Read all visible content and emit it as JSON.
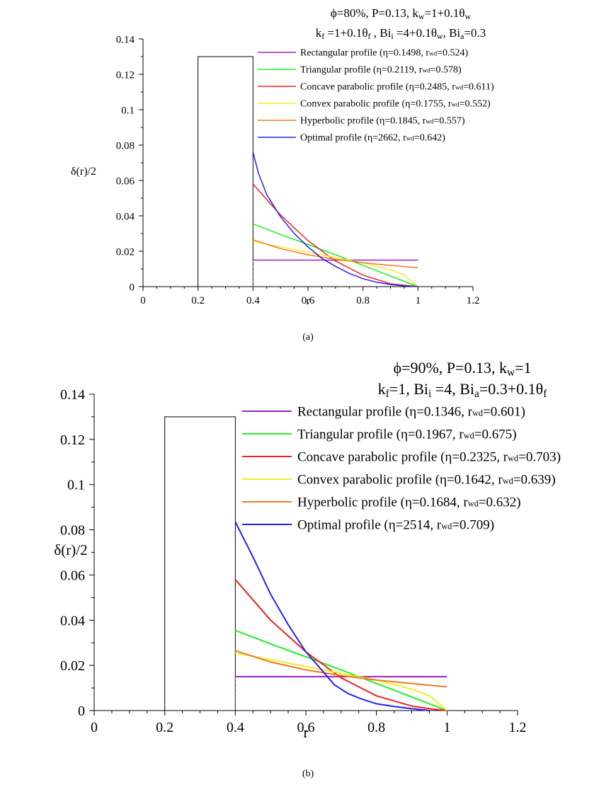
{
  "chart_data": [
    {
      "type": "line",
      "panel_label": "(a)",
      "subtitle_lines": [
        {
          "parts": [
            [
              "t",
              "ϕ=80%, P=0.13, k"
            ],
            [
              "s",
              "w"
            ],
            [
              "t",
              "=1+0.1θ"
            ],
            [
              "s",
              "w"
            ]
          ]
        },
        {
          "parts": [
            [
              "t",
              "k"
            ],
            [
              "s",
              "f"
            ],
            [
              "t",
              " =1+0.1θ"
            ],
            [
              "s",
              "f"
            ],
            [
              "t",
              " , Bi"
            ],
            [
              "s",
              "i"
            ],
            [
              "t",
              " =4+0.1θ"
            ],
            [
              "s",
              "w"
            ],
            [
              "t",
              ", Bi"
            ],
            [
              "s",
              "a"
            ],
            [
              "t",
              "=0.3"
            ]
          ]
        }
      ],
      "xlabel": "r",
      "ylabel": "δ(r)/2",
      "xlim": [
        0,
        1.2
      ],
      "ylim": [
        0,
        0.14
      ],
      "xticks": [
        0,
        0.2,
        0.4,
        0.6,
        0.8,
        1,
        1.2
      ],
      "xtick_labels": [
        "0",
        "0.2",
        "0.4",
        "0.6",
        "0.8",
        "1",
        "1.2"
      ],
      "yticks": [
        0,
        0.02,
        0.04,
        0.06,
        0.08,
        0.1,
        0.12,
        0.14
      ],
      "ytick_labels": [
        "0",
        "0.02",
        "0.04",
        "0.06",
        "0.08",
        "0.1",
        "0.12",
        "0.14"
      ],
      "heat_pipe_block": {
        "x": [
          0.2,
          0.4
        ],
        "height": 0.13
      },
      "series": [
        {
          "name": "Rectangular profile",
          "eta": "η=0.1498",
          "rwd": "=0.524",
          "color": "#a020c0",
          "x": [
            0.4,
            1.0
          ],
          "y": [
            0.015,
            0.015
          ]
        },
        {
          "name": "Triangular profile",
          "eta": "η=0.2119",
          "rwd": "=0.578",
          "color": "#22ee22",
          "x": [
            0.4,
            0.5,
            0.6,
            0.7,
            0.8,
            0.9,
            1.0
          ],
          "y": [
            0.0355,
            0.0295,
            0.0238,
            0.018,
            0.012,
            0.006,
            0.0
          ]
        },
        {
          "name": "Concave parabolic profile",
          "eta": "η=0.2485",
          "rwd": "=0.611",
          "color": "#ee2222",
          "x": [
            0.4,
            0.5,
            0.6,
            0.7,
            0.8,
            0.9,
            1.0
          ],
          "y": [
            0.058,
            0.0405,
            0.026,
            0.0145,
            0.0065,
            0.0016,
            0.0
          ]
        },
        {
          "name": "Convex parabolic profile",
          "eta": "η=0.1755",
          "rwd": "=0.552",
          "color": "#eeee22",
          "x": [
            0.4,
            0.5,
            0.6,
            0.7,
            0.8,
            0.9,
            0.95,
            1.0
          ],
          "y": [
            0.0255,
            0.0225,
            0.0195,
            0.0165,
            0.0135,
            0.0095,
            0.0065,
            0.0
          ]
        },
        {
          "name": "Hyperbolic profile",
          "eta": "η=0.1845",
          "rwd": "=0.557",
          "color": "#f07a22",
          "x": [
            0.4,
            0.5,
            0.6,
            0.7,
            0.8,
            0.9,
            1.0
          ],
          "y": [
            0.0265,
            0.0215,
            0.018,
            0.0155,
            0.0135,
            0.012,
            0.0107
          ]
        },
        {
          "name": "Optimal profile",
          "eta": "η=2662",
          "rwd": "=0.642",
          "color": "#2222ee",
          "x": [
            0.4,
            0.42,
            0.45,
            0.5,
            0.55,
            0.6,
            0.65,
            0.7,
            0.75,
            0.8,
            0.85,
            0.9,
            0.95,
            1.0
          ],
          "y": [
            0.076,
            0.064,
            0.052,
            0.0395,
            0.03,
            0.0225,
            0.016,
            0.0115,
            0.0075,
            0.0045,
            0.0025,
            0.0012,
            0.0004,
            0.0
          ]
        }
      ]
    },
    {
      "type": "line",
      "panel_label": "(b)",
      "subtitle_lines": [
        {
          "parts": [
            [
              "t",
              "ϕ=90%, P=0.13, k"
            ],
            [
              "s",
              "w"
            ],
            [
              "t",
              "=1"
            ]
          ]
        },
        {
          "parts": [
            [
              "t",
              "k"
            ],
            [
              "s",
              "f"
            ],
            [
              "t",
              "=1, Bi"
            ],
            [
              "s",
              "i"
            ],
            [
              "t",
              " =4, Bi"
            ],
            [
              "s",
              "a"
            ],
            [
              "t",
              "=0.3+0.1θ"
            ],
            [
              "s",
              "f"
            ]
          ]
        }
      ],
      "xlabel": "r",
      "ylabel": "δ(r)/2",
      "xlim": [
        0,
        1.2
      ],
      "ylim": [
        0,
        0.14
      ],
      "xticks": [
        0,
        0.2,
        0.4,
        0.6,
        0.8,
        1,
        1.2
      ],
      "xtick_labels": [
        "0",
        "0.2",
        "0.4",
        "0.6",
        "0.8",
        "1",
        "1.2"
      ],
      "yticks": [
        0,
        0.02,
        0.04,
        0.06,
        0.08,
        0.1,
        0.12,
        0.14
      ],
      "ytick_labels": [
        "0",
        "0.02",
        "0.04",
        "0.06",
        "0.08",
        "0.1",
        "0.12",
        "0.14"
      ],
      "heat_pipe_block": {
        "x": [
          0.2,
          0.4
        ],
        "height": 0.13
      },
      "series": [
        {
          "name": "Rectangular profile",
          "eta": "η=0.1346",
          "rwd": "=0.601",
          "color": "#a020c0",
          "x": [
            0.4,
            1.0
          ],
          "y": [
            0.015,
            0.015
          ]
        },
        {
          "name": "Triangular profile",
          "eta": "η=0.1967",
          "rwd": "=0.675",
          "color": "#22ee22",
          "x": [
            0.4,
            0.5,
            0.6,
            0.7,
            0.8,
            0.9,
            1.0
          ],
          "y": [
            0.0355,
            0.0295,
            0.0238,
            0.018,
            0.012,
            0.006,
            0.0
          ]
        },
        {
          "name": "Concave parabolic profile",
          "eta": "η=0.2325",
          "rwd": "=0.703",
          "color": "#ee2222",
          "x": [
            0.4,
            0.5,
            0.6,
            0.7,
            0.8,
            0.9,
            0.95,
            1.0
          ],
          "y": [
            0.058,
            0.04,
            0.026,
            0.0145,
            0.0065,
            0.002,
            0.0008,
            0.0
          ]
        },
        {
          "name": "Convex parabolic profile",
          "eta": "η=0.1642",
          "rwd": "=0.639",
          "color": "#eeee22",
          "x": [
            0.4,
            0.5,
            0.6,
            0.7,
            0.8,
            0.9,
            0.95,
            1.0
          ],
          "y": [
            0.0255,
            0.0225,
            0.0195,
            0.0165,
            0.0135,
            0.0095,
            0.0065,
            0.0
          ]
        },
        {
          "name": "Hyperbolic profile",
          "eta": "η=0.1684",
          "rwd": "=0.632",
          "color": "#f07a22",
          "x": [
            0.4,
            0.5,
            0.6,
            0.7,
            0.8,
            0.9,
            1.0
          ],
          "y": [
            0.0265,
            0.0215,
            0.018,
            0.0155,
            0.0135,
            0.012,
            0.0105
          ]
        },
        {
          "name": "Optimal profile",
          "eta": "η=2514",
          "rwd": "=0.709",
          "color": "#2222ee",
          "x": [
            0.4,
            0.45,
            0.5,
            0.55,
            0.6,
            0.65,
            0.68,
            0.72,
            0.76,
            0.8,
            0.85,
            0.9,
            0.95
          ],
          "y": [
            0.0835,
            0.068,
            0.0515,
            0.038,
            0.026,
            0.017,
            0.0115,
            0.0075,
            0.005,
            0.003,
            0.0018,
            0.0008,
            0.0
          ]
        }
      ]
    }
  ]
}
